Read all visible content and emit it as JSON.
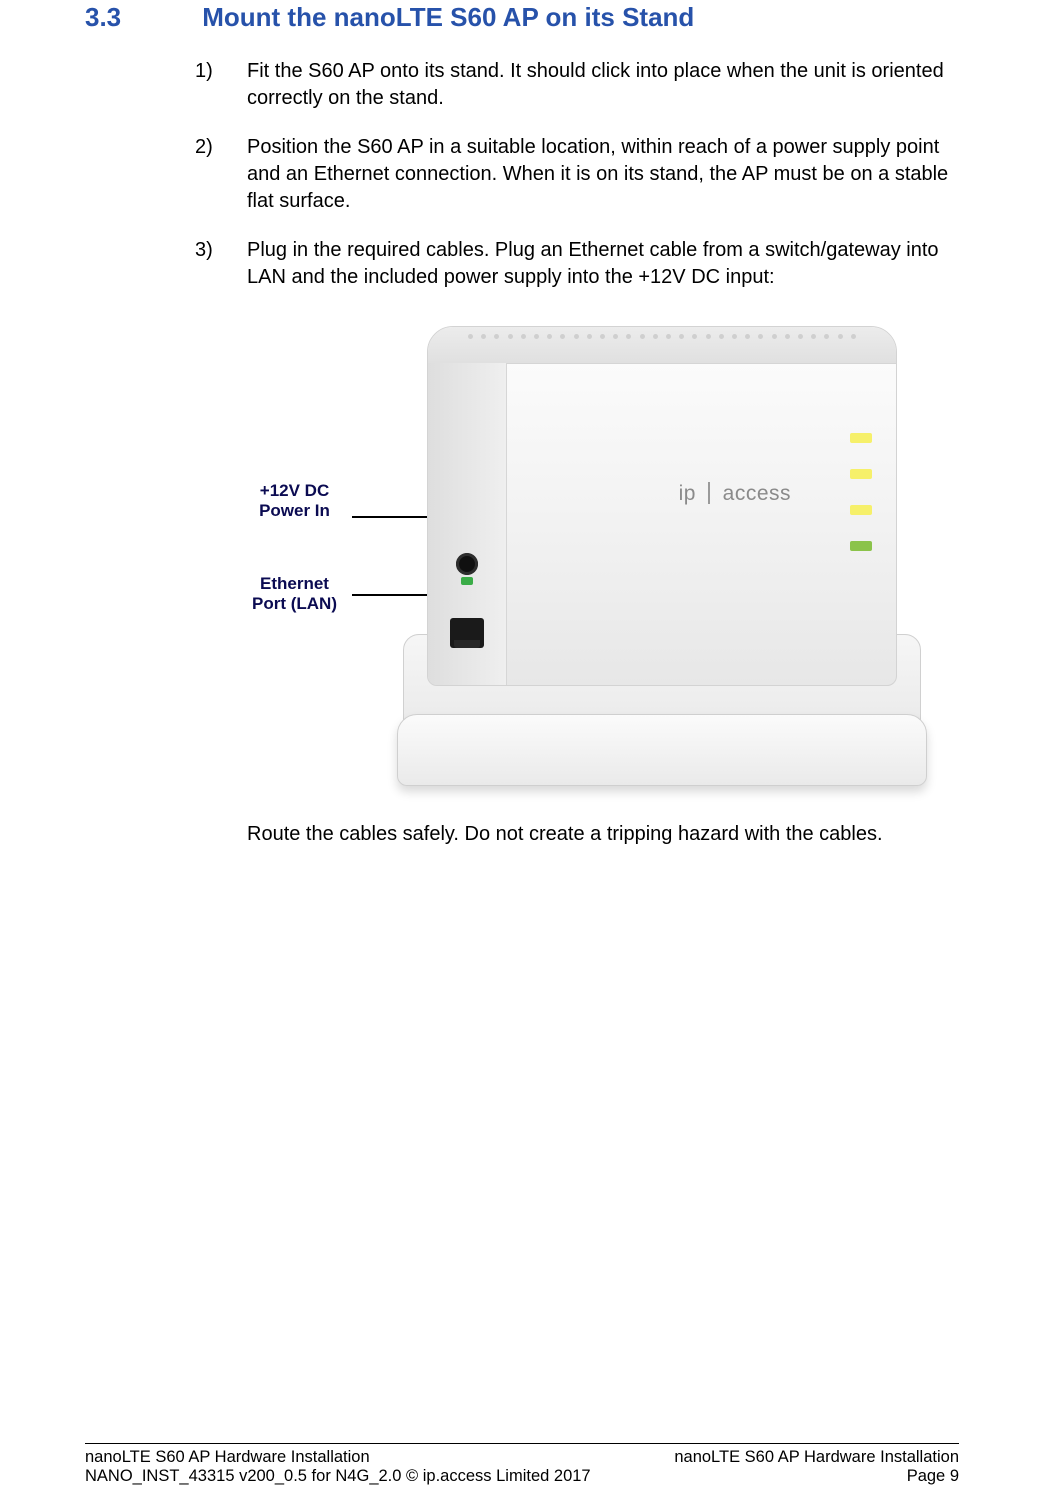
{
  "heading": {
    "number": "3.3",
    "title": "Mount the nanoLTE S60 AP on its Stand",
    "color": "#2752aa",
    "fontsize": 26
  },
  "steps": [
    {
      "num": "1)",
      "text": "Fit the S60 AP onto its stand. It should click into place when the unit is oriented correctly on the stand."
    },
    {
      "num": "2)",
      "text": "Position the S60 AP in a suitable location, within reach of a power supply point and an Ethernet connection. When it is on its stand, the AP must be on a stable flat surface."
    },
    {
      "num": "3)",
      "text": "Plug in the required cables. Plug an Ethernet cable from a switch/gateway into LAN and the included power supply into the +12V DC input:"
    }
  ],
  "figure": {
    "callouts": {
      "dc": "+12V DC\nPower In",
      "lan": "Ethernet\nPort (LAN)"
    },
    "brand_left": "ip",
    "brand_right": "access",
    "device_body_gradient": [
      "#fdfdfd",
      "#f2f2f2",
      "#e7e7e7"
    ],
    "stand_gradient": [
      "#fbfbfb",
      "#eaeaea"
    ],
    "port_color": "#1a1a1a",
    "led_colors": [
      "#f6f06a",
      "#f6f06a",
      "#f6f06a",
      "#8bc34a"
    ],
    "callout_text_color": "#0b0b52"
  },
  "post_figure_text": "Route the cables safely. Do not create a tripping hazard with the cables.",
  "footer": {
    "left_line1": "nanoLTE S60 AP Hardware Installation",
    "right_line1": "nanoLTE S60 AP Hardware Installation",
    "left_line2": "NANO_INST_43315 v200_0.5 for N4G_2.0 © ip.access Limited 2017",
    "right_line2": "Page 9"
  },
  "body_text": {
    "fontsize": 20,
    "color": "#000000",
    "line_height": 1.35
  }
}
